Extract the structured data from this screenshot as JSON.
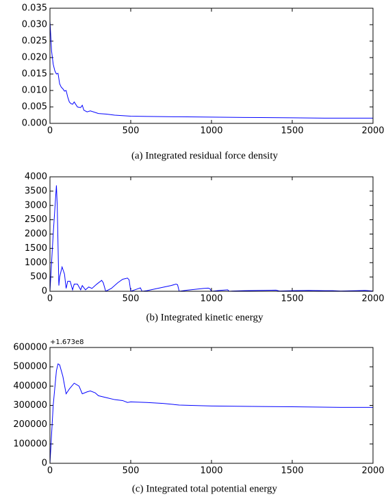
{
  "chart_data": [
    {
      "type": "line",
      "caption": "(a)  Integrated residual force density",
      "color": "#0000ff",
      "x": [
        0,
        10,
        20,
        30,
        40,
        50,
        60,
        70,
        80,
        90,
        100,
        110,
        120,
        130,
        140,
        150,
        170,
        190,
        200,
        210,
        230,
        250,
        300,
        350,
        400,
        500,
        600,
        800,
        1000,
        1200,
        1500,
        1700,
        2000
      ],
      "values": [
        0.031,
        0.022,
        0.018,
        0.016,
        0.015,
        0.0152,
        0.012,
        0.011,
        0.0105,
        0.0098,
        0.01,
        0.008,
        0.0065,
        0.006,
        0.0058,
        0.0065,
        0.005,
        0.0048,
        0.0055,
        0.004,
        0.0035,
        0.0038,
        0.003,
        0.0028,
        0.0025,
        0.0022,
        0.0021,
        0.002,
        0.0019,
        0.0018,
        0.0017,
        0.0016,
        0.0016
      ],
      "xlim": [
        0,
        2000
      ],
      "xticks": [
        0,
        500,
        1000,
        1500,
        2000
      ],
      "ylim": [
        0,
        0.035
      ],
      "yticks": [
        {
          "value": 0,
          "label": "0.000"
        },
        0.005,
        {
          "value": 0.01,
          "label": "0.010"
        },
        0.015,
        {
          "value": 0.02,
          "label": "0.020"
        },
        0.025,
        {
          "value": 0.03,
          "label": "0.030"
        },
        0.035
      ]
    },
    {
      "type": "line",
      "caption": "(b)  Integrated kinetic energy",
      "color": "#0000ff",
      "x": [
        0,
        20,
        40,
        45,
        55,
        60,
        75,
        90,
        100,
        110,
        125,
        140,
        150,
        170,
        190,
        200,
        220,
        240,
        260,
        290,
        320,
        330,
        345,
        380,
        420,
        450,
        480,
        490,
        500,
        540,
        560,
        570,
        600,
        650,
        700,
        750,
        780,
        790,
        800,
        850,
        900,
        950,
        980,
        990,
        1000,
        1050,
        1100,
        1110,
        1130,
        1200,
        1300,
        1400,
        1420,
        1500,
        1600,
        1700,
        1750,
        1800,
        1900,
        1950,
        2000
      ],
      "values": [
        0,
        2000,
        3700,
        3000,
        200,
        500,
        850,
        600,
        100,
        350,
        350,
        50,
        250,
        250,
        50,
        200,
        50,
        150,
        100,
        250,
        380,
        300,
        0,
        100,
        300,
        420,
        460,
        400,
        0,
        80,
        120,
        0,
        20,
        80,
        140,
        200,
        250,
        230,
        0,
        40,
        70,
        100,
        110,
        90,
        0,
        30,
        50,
        0,
        10,
        20,
        30,
        40,
        10,
        20,
        30,
        20,
        20,
        10,
        20,
        30,
        10
      ],
      "xlim": [
        0,
        2000
      ],
      "xticks": [
        0,
        500,
        1000,
        1500,
        2000
      ],
      "ylim": [
        0,
        4000
      ],
      "yticks": [
        0,
        500,
        1000,
        1500,
        2000,
        2500,
        3000,
        3500,
        4000
      ]
    },
    {
      "type": "line",
      "caption": "(c)  Integrated total potential energy",
      "color": "#0000ff",
      "y_offset_label": "+1.673e8",
      "x": [
        0,
        20,
        40,
        50,
        60,
        80,
        100,
        120,
        150,
        180,
        200,
        230,
        250,
        280,
        300,
        350,
        400,
        450,
        480,
        500,
        600,
        700,
        800,
        1000,
        1200,
        1500,
        1800,
        2000
      ],
      "values": [
        0,
        300000,
        480000,
        515000,
        510000,
        450000,
        360000,
        385000,
        415000,
        400000,
        360000,
        370000,
        375000,
        365000,
        350000,
        340000,
        330000,
        325000,
        315000,
        318000,
        315000,
        310000,
        302000,
        297000,
        295000,
        293000,
        290000,
        290000
      ],
      "xlim": [
        0,
        2000
      ],
      "xticks": [
        0,
        500,
        1000,
        1500,
        2000
      ],
      "ylim": [
        0,
        600000
      ],
      "yticks": [
        0,
        100000,
        200000,
        300000,
        400000,
        500000,
        600000
      ]
    }
  ]
}
